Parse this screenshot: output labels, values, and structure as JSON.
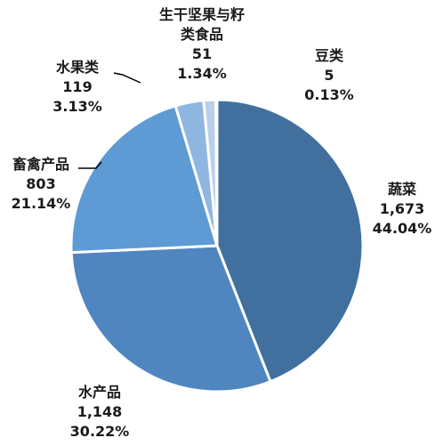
{
  "chart_data": {
    "type": "pie",
    "title": "",
    "slices": [
      {
        "label": "蔬菜",
        "value_text": "1,673",
        "percent_text": "44.04%",
        "value": 1673,
        "percent": 44.04,
        "color": "#41709f"
      },
      {
        "label": "水产品",
        "value_text": "1,148",
        "percent_text": "30.22%",
        "value": 1148,
        "percent": 30.22,
        "color": "#4f86c0"
      },
      {
        "label": "畜禽产品",
        "value_text": "803",
        "percent_text": "21.14%",
        "value": 803,
        "percent": 21.14,
        "color": "#5e9ad4"
      },
      {
        "label": "水果类",
        "value_text": "119",
        "percent_text": "3.13%",
        "value": 119,
        "percent": 3.13,
        "color": "#8fb6e0"
      },
      {
        "label": "生干坚果与籽类食品",
        "value_text": "51",
        "percent_text": "1.34%",
        "value": 51,
        "percent": 1.34,
        "color": "#b9cfeb"
      },
      {
        "label": "豆类",
        "value_text": "5",
        "percent_text": "0.13%",
        "value": 5,
        "percent": 0.13,
        "color": "#dde8f6"
      }
    ]
  }
}
